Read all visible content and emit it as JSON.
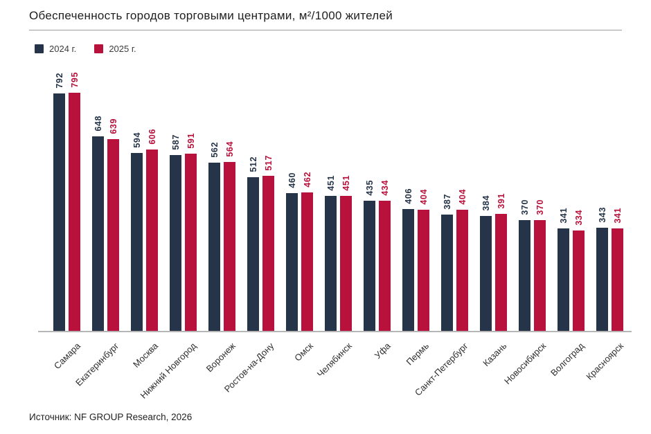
{
  "title": "Обеспеченность городов торговыми центрами, м²/1000 жителей",
  "source": "Источник: NF GROUP Research, 2026",
  "colors": {
    "series_2024": "#263449",
    "series_2025": "#B8113C",
    "axis_line": "#b5b5b5",
    "title_rule": "#9a9a9a"
  },
  "chart_data": {
    "type": "bar",
    "title": "Обеспеченность городов торговыми центрами, м²/1000 жителей",
    "categories": [
      "Самара",
      "Екатеринбург",
      "Москва",
      "Нижний Новгород",
      "Воронеж",
      "Ростов-на-Дону",
      "Омск",
      "Челябинск",
      "Уфа",
      "Пермь",
      "Санкт-Петербург",
      "Казань",
      "Новосибирск",
      "Волгоград",
      "Красноярск"
    ],
    "series": [
      {
        "name": "2024 г.",
        "color": "#263449",
        "values": [
          792,
          648,
          594,
          587,
          562,
          512,
          460,
          451,
          435,
          406,
          387,
          384,
          370,
          341,
          343
        ]
      },
      {
        "name": "2025 г.",
        "color": "#B8113C",
        "values": [
          795,
          639,
          606,
          591,
          564,
          517,
          462,
          451,
          434,
          404,
          404,
          391,
          370,
          334,
          341
        ]
      }
    ],
    "xlabel": "",
    "ylabel": "м²/1000 жителей",
    "ylim": [
      0,
      800
    ],
    "grid": false,
    "value_labels": "rotated-90-above-bars",
    "legend_position": "top-left"
  }
}
